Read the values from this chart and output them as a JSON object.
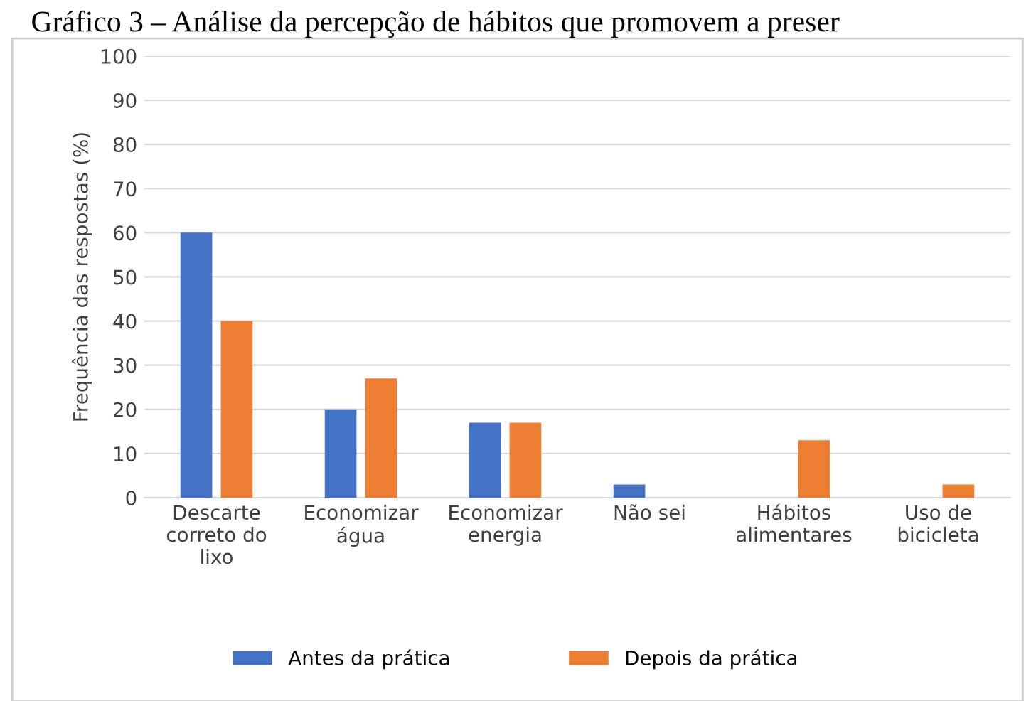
{
  "chart_data": {
    "type": "bar",
    "title": "Gráfico 3 – Análise da percepção de hábitos que promovem a preser",
    "categories": [
      "Descarte correto do lixo",
      "Economizar água",
      "Economizar energia",
      "Não sei",
      "Hábitos alimentares",
      "Uso de bicicleta"
    ],
    "series": [
      {
        "name": "Antes da prática",
        "color": "#4472c4",
        "values": [
          60,
          20,
          17,
          3,
          0,
          0
        ]
      },
      {
        "name": "Depois da prática",
        "color": "#ed7d31",
        "values": [
          40,
          27,
          17,
          0,
          13,
          3
        ]
      }
    ],
    "ylabel": "Frequência das respostas (%)",
    "ylim": [
      0,
      100
    ],
    "yticks": [
      0,
      10,
      20,
      30,
      40,
      50,
      60,
      70,
      80,
      90,
      100
    ],
    "grid": "y",
    "legend": "bottom"
  }
}
